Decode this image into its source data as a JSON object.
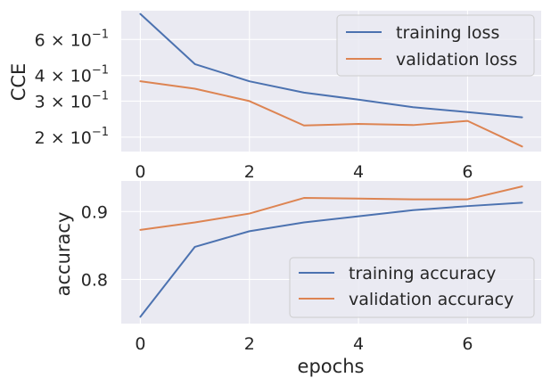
{
  "chart_data": [
    {
      "type": "line",
      "ylabel": "CCE",
      "xlabel": "",
      "yscale": "log",
      "xlim": [
        -0.35,
        7.35
      ],
      "ylim": [
        0.17,
        0.83
      ],
      "x": [
        0,
        1,
        2,
        3,
        4,
        5,
        6,
        7
      ],
      "xticks": [
        "0",
        "2",
        "4",
        "6"
      ],
      "xtick_values": [
        0,
        2,
        4,
        6
      ],
      "yticks": [
        {
          "value": 0.6,
          "base": "6 × 10",
          "exp": "−1"
        },
        {
          "value": 0.4,
          "base": "4 × 10",
          "exp": "−1"
        },
        {
          "value": 0.3,
          "base": "3 × 10",
          "exp": "−1"
        },
        {
          "value": 0.2,
          "base": "2 × 10",
          "exp": "−1"
        }
      ],
      "grid": true,
      "legend_position": "top-right",
      "series": [
        {
          "name": "training loss",
          "color": "#4c72b0",
          "values": [
            0.8,
            0.455,
            0.375,
            0.33,
            0.305,
            0.28,
            0.265,
            0.25
          ]
        },
        {
          "name": "validation loss",
          "color": "#dd8452",
          "values": [
            0.375,
            0.345,
            0.3,
            0.228,
            0.232,
            0.229,
            0.24,
            0.18
          ]
        }
      ]
    },
    {
      "type": "line",
      "ylabel": "accuracy",
      "xlabel": "epochs",
      "xlim": [
        -0.35,
        7.35
      ],
      "ylim": [
        0.735,
        0.945
      ],
      "x": [
        0,
        1,
        2,
        3,
        4,
        5,
        6,
        7
      ],
      "xticks": [
        "0",
        "2",
        "4",
        "6"
      ],
      "xtick_values": [
        0,
        2,
        4,
        6
      ],
      "yticks": [
        {
          "value": 0.9,
          "label": "0.9"
        },
        {
          "value": 0.8,
          "label": "0.8"
        }
      ],
      "grid": true,
      "legend_position": "lower-right",
      "series": [
        {
          "name": "training accuracy",
          "color": "#4c72b0",
          "values": [
            0.745,
            0.848,
            0.871,
            0.884,
            0.893,
            0.902,
            0.908,
            0.913
          ]
        },
        {
          "name": "validation accuracy",
          "color": "#dd8452",
          "values": [
            0.873,
            0.884,
            0.897,
            0.92,
            0.919,
            0.918,
            0.918,
            0.937
          ]
        }
      ]
    }
  ]
}
